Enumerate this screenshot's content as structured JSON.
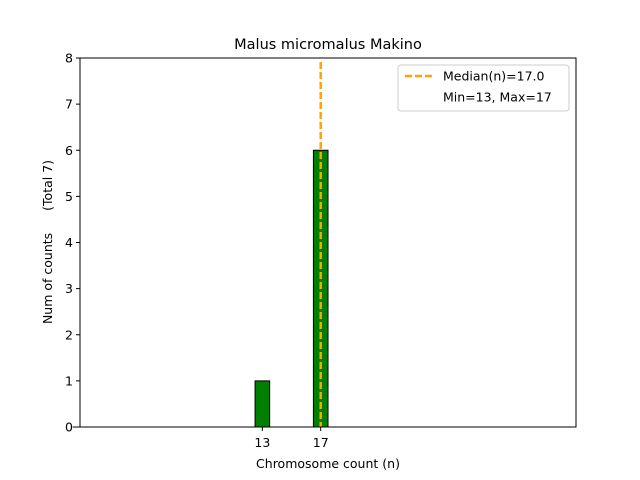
{
  "chart_data": {
    "type": "bar",
    "title": "Malus micromalus Makino",
    "xlabel": "Chromosome count (n)",
    "ylabel": "Num of counts",
    "ylabel_total": "(Total 7)",
    "x": [
      13,
      17
    ],
    "values": [
      1,
      6
    ],
    "xticks": [
      13,
      17
    ],
    "xlim": [
      0.5,
      34.5
    ],
    "ylim": [
      0,
      8
    ],
    "yticks": [
      0,
      1,
      2,
      3,
      4,
      5,
      6,
      7,
      8
    ],
    "bar_width": 1,
    "bar_color": "#008000",
    "median": 17.0,
    "median_color": "#FFA500",
    "legend": {
      "placement": "top-right",
      "median_label": "Median(n)=17.0",
      "range_label": "Min=13, Max=17"
    },
    "grid": false
  }
}
